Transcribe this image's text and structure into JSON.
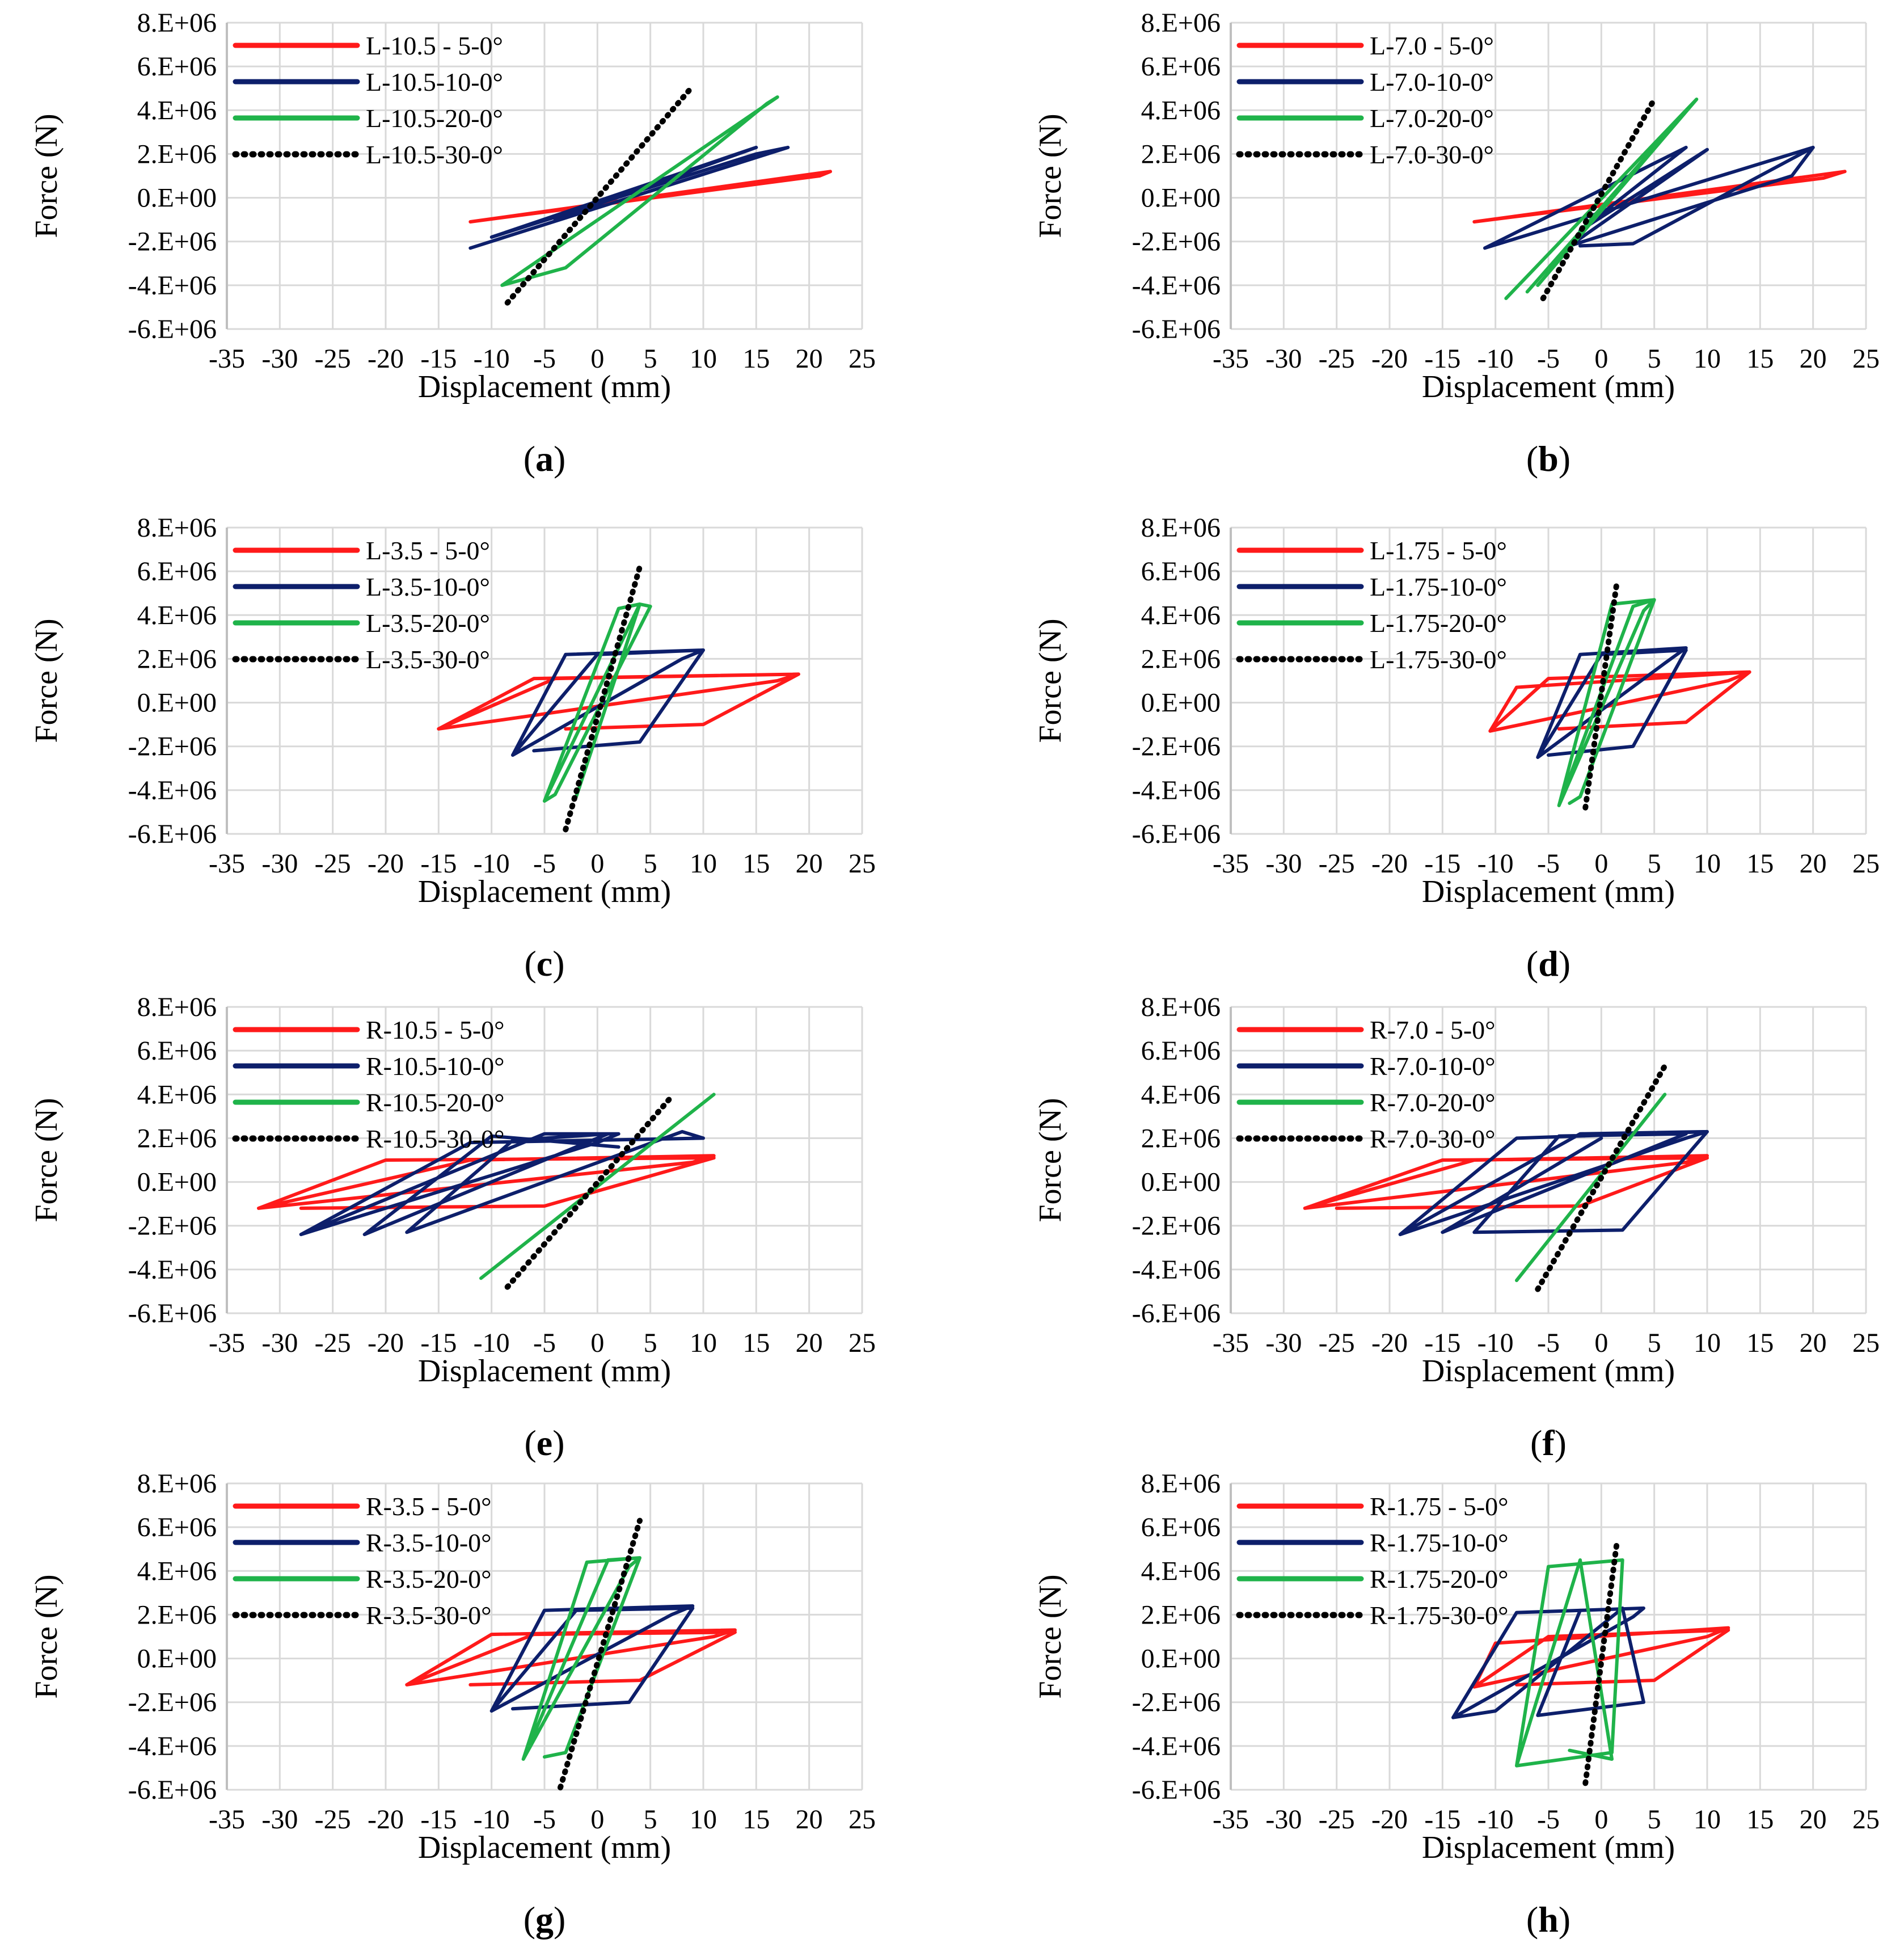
{
  "figure": {
    "panel_count": 8,
    "colors": {
      "red": "#ff1a1a",
      "navy": "#0d1f6b",
      "green": "#1fb34a",
      "black": "#000000",
      "grid": "#d9d9d9"
    }
  },
  "chart_data": [
    {
      "type": "line",
      "label": "(a)",
      "label_parts": [
        "(",
        "a",
        ")"
      ],
      "xlabel": "Displacement (mm)",
      "ylabel": "Force (N)",
      "xlim": [
        -35,
        25
      ],
      "ylim": [
        -6000000,
        8000000
      ],
      "xticks": [
        "-35",
        "-30",
        "-25",
        "-20",
        "-15",
        "-10",
        "-5",
        "0",
        "5",
        "10",
        "15",
        "20",
        "25"
      ],
      "yticks": [
        "8.E+06",
        "6.E+06",
        "4.E+06",
        "2.E+06",
        "0.E+00",
        "-2.E+06",
        "-4.E+06",
        "-6.E+06"
      ],
      "grid": true,
      "legend_position": "top-left",
      "series": [
        {
          "name": "L-10.5 - 5-0°",
          "color": "red",
          "style": "solid",
          "x": [
            -12,
            22,
            21,
            -12,
            22
          ],
          "y": [
            -1100000,
            1200000,
            1000000,
            -1100000,
            1200000
          ]
        },
        {
          "name": "L-10.5-10-0°",
          "color": "navy",
          "style": "solid",
          "x": [
            -12,
            18,
            15,
            -10,
            15,
            -4
          ],
          "y": [
            -2300000,
            2300000,
            2000000,
            -1800000,
            2300000,
            -1000000
          ]
        },
        {
          "name": "L-10.5-20-0°",
          "color": "green",
          "style": "solid",
          "x": [
            -9,
            17,
            16,
            -3,
            -9
          ],
          "y": [
            -4000000,
            4600000,
            4300000,
            -3200000,
            -4000000
          ]
        },
        {
          "name": "L-10.5-30-0°",
          "color": "black",
          "style": "dotted",
          "x": [
            -8.5,
            9
          ],
          "y": [
            -4800000,
            5100000
          ]
        }
      ]
    },
    {
      "type": "line",
      "label": "(b)",
      "label_parts": [
        "(",
        "b",
        ")"
      ],
      "xlabel": "Displacement (mm)",
      "ylabel": "Force (N)",
      "xlim": [
        -35,
        25
      ],
      "ylim": [
        -6000000,
        8000000
      ],
      "xticks": [
        "-35",
        "-30",
        "-25",
        "-20",
        "-15",
        "-10",
        "-5",
        "0",
        "5",
        "10",
        "15",
        "20",
        "25"
      ],
      "yticks": [
        "8.E+06",
        "6.E+06",
        "4.E+06",
        "2.E+06",
        "0.E+00",
        "-2.E+06",
        "-4.E+06",
        "-6.E+06"
      ],
      "grid": true,
      "legend_position": "top-left",
      "series": [
        {
          "name": "L-7.0 - 5-0°",
          "color": "red",
          "style": "solid",
          "x": [
            -12,
            23,
            21,
            -12,
            23
          ],
          "y": [
            -1100000,
            1200000,
            900000,
            -1100000,
            1200000
          ]
        },
        {
          "name": "L-7.0-10-0°",
          "color": "navy",
          "style": "solid",
          "x": [
            -11,
            20,
            18,
            -3,
            10,
            -2,
            8,
            -11,
            20,
            3,
            -2
          ],
          "y": [
            -2300000,
            2300000,
            1000000,
            -2200000,
            2200000,
            -1500000,
            2300000,
            -2300000,
            2300000,
            -2100000,
            -2200000
          ]
        },
        {
          "name": "L-7.0-20-0°",
          "color": "green",
          "style": "solid",
          "x": [
            -7,
            9,
            8,
            -9,
            9,
            -6
          ],
          "y": [
            -4300000,
            4500000,
            4000000,
            -4600000,
            4500000,
            -4000000
          ]
        },
        {
          "name": "L-7.0-30-0°",
          "color": "black",
          "style": "dotted",
          "x": [
            -5.5,
            5
          ],
          "y": [
            -4600000,
            4500000
          ]
        }
      ]
    },
    {
      "type": "line",
      "label": "(c)",
      "label_parts": [
        "(",
        "c",
        ")"
      ],
      "xlabel": "Displacement (mm)",
      "ylabel": "Force (N)",
      "xlim": [
        -35,
        25
      ],
      "ylim": [
        -6000000,
        8000000
      ],
      "xticks": [
        "-35",
        "-30",
        "-25",
        "-20",
        "-15",
        "-10",
        "-5",
        "0",
        "5",
        "10",
        "15",
        "20",
        "25"
      ],
      "yticks": [
        "8.E+06",
        "6.E+06",
        "4.E+06",
        "2.E+06",
        "0.E+00",
        "-2.E+06",
        "-4.E+06",
        "-6.E+06"
      ],
      "grid": true,
      "legend_position": "top-left",
      "series": [
        {
          "name": "L-3.5 - 5-0°",
          "color": "red",
          "style": "solid",
          "x": [
            -15,
            -6,
            19,
            17,
            -15,
            -4,
            19,
            10,
            -3
          ],
          "y": [
            -1200000,
            1100000,
            1300000,
            1000000,
            -1200000,
            1100000,
            1300000,
            -1000000,
            -1200000
          ]
        },
        {
          "name": "L-3.5-10-0°",
          "color": "navy",
          "style": "solid",
          "x": [
            -8,
            -3,
            10,
            8,
            -8,
            0,
            10,
            4,
            -6
          ],
          "y": [
            -2400000,
            2200000,
            2400000,
            2000000,
            -2400000,
            2200000,
            2400000,
            -1800000,
            -2200000
          ]
        },
        {
          "name": "L-3.5-20-0°",
          "color": "green",
          "style": "solid",
          "x": [
            -5,
            4,
            5,
            -4,
            -5,
            2,
            4,
            -2
          ],
          "y": [
            -4500000,
            4500000,
            4400000,
            -4200000,
            -4500000,
            4300000,
            4500000,
            -4300000
          ]
        },
        {
          "name": "L-3.5-30-0°",
          "color": "black",
          "style": "dotted",
          "x": [
            -3,
            4
          ],
          "y": [
            -5800000,
            6200000
          ]
        }
      ]
    },
    {
      "type": "line",
      "label": "(d)",
      "label_parts": [
        "(",
        "d",
        ")"
      ],
      "xlabel": "Displacement (mm)",
      "ylabel": "Force (N)",
      "xlim": [
        -35,
        25
      ],
      "ylim": [
        -6000000,
        8000000
      ],
      "xticks": [
        "-35",
        "-30",
        "-25",
        "-20",
        "-15",
        "-10",
        "-5",
        "0",
        "5",
        "10",
        "15",
        "20",
        "25"
      ],
      "yticks": [
        "8.E+06",
        "6.E+06",
        "4.E+06",
        "2.E+06",
        "0.E+00",
        "-2.E+06",
        "-4.E+06",
        "-6.E+06"
      ],
      "grid": true,
      "legend_position": "top-left",
      "series": [
        {
          "name": "L-1.75 - 5-0°",
          "color": "red",
          "style": "solid",
          "x": [
            -10.5,
            -8,
            14,
            12,
            -10.5,
            -5,
            14,
            8,
            -4
          ],
          "y": [
            -1300000,
            700000,
            1400000,
            1000000,
            -1300000,
            1100000,
            1400000,
            -900000,
            -1200000
          ]
        },
        {
          "name": "L-1.75-10-0°",
          "color": "navy",
          "style": "solid",
          "x": [
            -6,
            -2,
            8,
            6,
            -6,
            0,
            8,
            3,
            -5
          ],
          "y": [
            -2500000,
            2200000,
            2500000,
            1800000,
            -2500000,
            2200000,
            2400000,
            -2000000,
            -2400000
          ]
        },
        {
          "name": "L-1.75-20-0°",
          "color": "green",
          "style": "solid",
          "x": [
            -4,
            3,
            5,
            4,
            -4,
            1,
            5,
            -2,
            -3
          ],
          "y": [
            -4700000,
            4400000,
            4700000,
            4200000,
            -4700000,
            4500000,
            4700000,
            -4300000,
            -4600000
          ]
        },
        {
          "name": "L-1.75-30-0°",
          "color": "black",
          "style": "dotted",
          "x": [
            -1.5,
            1.5
          ],
          "y": [
            -4800000,
            5600000
          ]
        }
      ]
    },
    {
      "type": "line",
      "label": "(e)",
      "label_parts": [
        "(",
        "e",
        ")"
      ],
      "xlabel": "Displacement (mm)",
      "ylabel": "Force (N)",
      "xlim": [
        -35,
        25
      ],
      "ylim": [
        -6000000,
        8000000
      ],
      "xticks": [
        "-35",
        "-30",
        "-25",
        "-20",
        "-15",
        "-10",
        "-5",
        "0",
        "5",
        "10",
        "15",
        "20",
        "25"
      ],
      "yticks": [
        "8.E+06",
        "6.E+06",
        "4.E+06",
        "2.E+06",
        "0.E+00",
        "-2.E+06",
        "-4.E+06",
        "-6.E+06"
      ],
      "grid": true,
      "legend_position": "top-left",
      "series": [
        {
          "name": "R-10.5 - 5-0°",
          "color": "red",
          "style": "solid",
          "x": [
            -32,
            -12,
            11,
            9,
            -32,
            -20,
            11,
            -5,
            -28
          ],
          "y": [
            -1200000,
            1000000,
            1200000,
            900000,
            -1200000,
            1000000,
            1100000,
            -1100000,
            -1200000
          ]
        },
        {
          "name": "R-10.5-10-0°",
          "color": "navy",
          "style": "solid",
          "x": [
            -28,
            -5,
            2,
            0,
            -28,
            -12,
            10,
            8,
            -18,
            -8,
            1,
            -22,
            -10,
            2
          ],
          "y": [
            -2400000,
            2200000,
            2200000,
            1800000,
            -2400000,
            1800000,
            2000000,
            2300000,
            -2300000,
            1900000,
            2200000,
            -2400000,
            2100000,
            1600000
          ]
        },
        {
          "name": "R-10.5-20-0°",
          "color": "green",
          "style": "solid",
          "x": [
            -11,
            11
          ],
          "y": [
            -4400000,
            4000000
          ]
        },
        {
          "name": "R-10.5-30-0°",
          "color": "black",
          "style": "dotted",
          "x": [
            -8.5,
            7
          ],
          "y": [
            -4800000,
            3900000
          ]
        }
      ]
    },
    {
      "type": "line",
      "label": "(f)",
      "label_parts": [
        "(",
        "f",
        ")"
      ],
      "xlabel": "Displacement (mm)",
      "ylabel": "Force (N)",
      "xlim": [
        -35,
        25
      ],
      "ylim": [
        -6000000,
        8000000
      ],
      "xticks": [
        "-35",
        "-30",
        "-25",
        "-20",
        "-15",
        "-10",
        "-5",
        "0",
        "5",
        "10",
        "15",
        "20",
        "25"
      ],
      "yticks": [
        "8.E+06",
        "6.E+06",
        "4.E+06",
        "2.E+06",
        "0.E+00",
        "-2.E+06",
        "-4.E+06",
        "-6.E+06"
      ],
      "grid": true,
      "legend_position": "top-left",
      "series": [
        {
          "name": "R-7.0 - 5-0°",
          "color": "red",
          "style": "solid",
          "x": [
            -28,
            -12,
            10,
            8,
            -28,
            -15,
            10,
            -2,
            -25
          ],
          "y": [
            -1200000,
            1000000,
            1200000,
            900000,
            -1200000,
            1000000,
            1100000,
            -1100000,
            -1200000
          ]
        },
        {
          "name": "R-7.0-10-0°",
          "color": "navy",
          "style": "solid",
          "x": [
            -19,
            -2,
            10,
            8,
            -19,
            -8,
            10,
            2,
            -12,
            -4,
            8,
            -15,
            0
          ],
          "y": [
            -2400000,
            2200000,
            2300000,
            2000000,
            -2400000,
            2000000,
            2300000,
            -2200000,
            -2300000,
            2100000,
            2200000,
            -2300000,
            2000000
          ]
        },
        {
          "name": "R-7.0-20-0°",
          "color": "green",
          "style": "solid",
          "x": [
            -8,
            6
          ],
          "y": [
            -4500000,
            4000000
          ]
        },
        {
          "name": "R-7.0-30-0°",
          "color": "black",
          "style": "dotted",
          "x": [
            -6,
            6
          ],
          "y": [
            -4900000,
            5300000
          ]
        }
      ]
    },
    {
      "type": "line",
      "label": "(g)",
      "label_parts": [
        "(",
        "g",
        ")"
      ],
      "xlabel": "Displacement (mm)",
      "ylabel": "Force (N)",
      "xlim": [
        -35,
        25
      ],
      "ylim": [
        -6000000,
        8000000
      ],
      "xticks": [
        "-35",
        "-30",
        "-25",
        "-20",
        "-15",
        "-10",
        "-5",
        "0",
        "5",
        "10",
        "15",
        "20",
        "25"
      ],
      "yticks": [
        "8.E+06",
        "6.E+06",
        "4.E+06",
        "2.E+06",
        "0.E+00",
        "-2.E+06",
        "-4.E+06",
        "-6.E+06"
      ],
      "grid": true,
      "legend_position": "top-left",
      "series": [
        {
          "name": "R-3.5 - 5-0°",
          "color": "red",
          "style": "solid",
          "x": [
            -18,
            -10,
            13,
            11,
            -18,
            -6,
            13,
            4,
            -12
          ],
          "y": [
            -1200000,
            1100000,
            1300000,
            1000000,
            -1200000,
            1100000,
            1200000,
            -1000000,
            -1200000
          ]
        },
        {
          "name": "R-3.5-10-0°",
          "color": "navy",
          "style": "solid",
          "x": [
            -10,
            -5,
            9,
            7,
            -10,
            -2,
            9,
            3,
            -8
          ],
          "y": [
            -2400000,
            2200000,
            2400000,
            2000000,
            -2400000,
            2200000,
            2300000,
            -2000000,
            -2300000
          ]
        },
        {
          "name": "R-3.5-20-0°",
          "color": "green",
          "style": "solid",
          "x": [
            -7,
            1,
            4,
            3,
            -7,
            -1,
            4,
            -3,
            -5
          ],
          "y": [
            -4600000,
            4500000,
            4600000,
            4200000,
            -4600000,
            4400000,
            4600000,
            -4300000,
            -4500000
          ]
        },
        {
          "name": "R-3.5-30-0°",
          "color": "black",
          "style": "dotted",
          "x": [
            -3.5,
            4
          ],
          "y": [
            -5900000,
            6300000
          ]
        }
      ]
    },
    {
      "type": "line",
      "label": "(h)",
      "label_parts": [
        "(",
        "h",
        ")"
      ],
      "xlabel": "Displacement (mm)",
      "ylabel": "Force (N)",
      "xlim": [
        -35,
        25
      ],
      "ylim": [
        -6000000,
        8000000
      ],
      "xticks": [
        "-35",
        "-30",
        "-25",
        "-20",
        "-15",
        "-10",
        "-5",
        "0",
        "5",
        "10",
        "15",
        "20",
        "25"
      ],
      "yticks": [
        "8.E+06",
        "6.E+06",
        "4.E+06",
        "2.E+06",
        "0.E+00",
        "-2.E+06",
        "-4.E+06",
        "-6.E+06"
      ],
      "grid": true,
      "legend_position": "top-left",
      "series": [
        {
          "name": "R-1.75 - 5-0°",
          "color": "red",
          "style": "solid",
          "x": [
            -12,
            -10,
            12,
            10,
            -12,
            -5,
            12,
            5,
            -8
          ],
          "y": [
            -1300000,
            700000,
            1400000,
            1000000,
            -1300000,
            1000000,
            1300000,
            -1000000,
            -1200000
          ]
        },
        {
          "name": "R-1.75-10-0°",
          "color": "navy",
          "style": "solid",
          "x": [
            -14,
            -8,
            4,
            3,
            -14,
            -10,
            2,
            4,
            -6,
            -2
          ],
          "y": [
            -2700000,
            2100000,
            2300000,
            1900000,
            -2700000,
            -2400000,
            2300000,
            -2000000,
            -2600000,
            2200000
          ]
        },
        {
          "name": "R-1.75-20-0°",
          "color": "green",
          "style": "solid",
          "x": [
            -8,
            -5,
            2,
            1,
            -8,
            -2,
            1,
            -3
          ],
          "y": [
            -4900000,
            4200000,
            4500000,
            -4300000,
            -4900000,
            4500000,
            -4600000,
            -4200000
          ]
        },
        {
          "name": "R-1.75-30-0°",
          "color": "black",
          "style": "dotted",
          "x": [
            -1.5,
            1.5
          ],
          "y": [
            -5700000,
            5400000
          ]
        }
      ]
    }
  ]
}
